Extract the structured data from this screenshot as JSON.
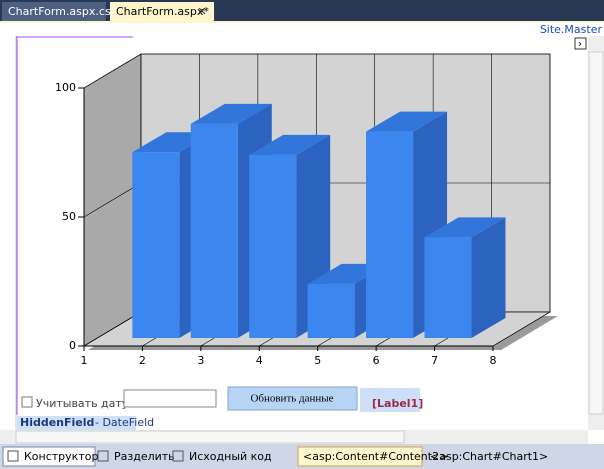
{
  "tabs": [
    "ChartForm.aspx.cs",
    "ChartForm.aspx*"
  ],
  "site_master": "Site.Master",
  "chart_data": {
    "type": "bar",
    "x": [
      2,
      3,
      4,
      5,
      6,
      7
    ],
    "values": [
      72,
      83,
      71,
      21,
      80,
      39
    ],
    "color": "#3b86ef",
    "xlim": [
      1,
      8
    ],
    "xticks": [
      1,
      2,
      3,
      4,
      5,
      6,
      7,
      8
    ],
    "ylim": [
      0,
      100
    ],
    "yticks": [
      0,
      50,
      100
    ],
    "grid": true
  },
  "form": {
    "checkbox_label": "Учитывать дату",
    "button": "Обновить данные",
    "label": "[Label1]",
    "hidden_field": "HiddenField",
    "hidden_field_id": "- DateField"
  },
  "bottom_bar": {
    "views": [
      "Конструктор",
      "Разделить",
      "Исходный код"
    ],
    "breadcrumbs": [
      "<asp:Content#Content2>",
      "<asp:Chart#Chart1>"
    ]
  }
}
